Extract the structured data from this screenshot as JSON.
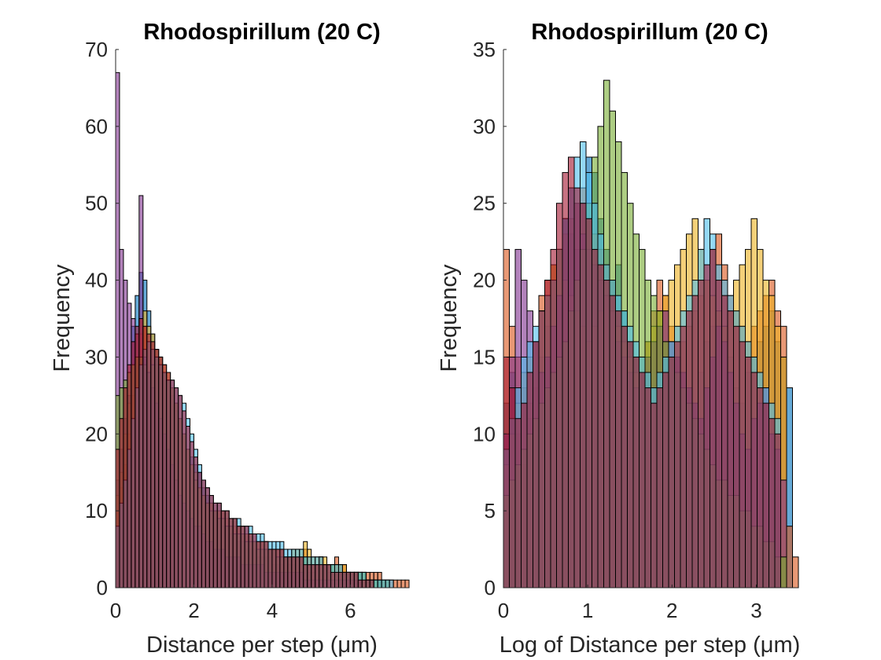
{
  "colors": [
    "#0072BD",
    "#D95319",
    "#EDB120",
    "#7E2F8E",
    "#77AC30",
    "#4DBEEE",
    "#A2142F"
  ],
  "chart_data": [
    {
      "type": "bar",
      "title": "Rhodospirillum (20 C)",
      "xlabel": "Distance per step (μm)",
      "ylabel": "Frequency",
      "xlim": [
        0,
        7.5
      ],
      "ylim": [
        0,
        70
      ],
      "xticks": [
        "0",
        "2",
        "4",
        "6"
      ],
      "yticks": [
        "0",
        "10",
        "20",
        "30",
        "40",
        "50",
        "60",
        "70"
      ],
      "bin_width": 0.1,
      "series": [
        {
          "start": 0.0,
          "counts": [
            14,
            18,
            22,
            25,
            34,
            38,
            41,
            40,
            36,
            33,
            31,
            30,
            28,
            27,
            25,
            23,
            22,
            20,
            18,
            17,
            16,
            15,
            13,
            12,
            11,
            10,
            9,
            8,
            8,
            7,
            7,
            6,
            6,
            5,
            5,
            5,
            4,
            4,
            4,
            4,
            3,
            3,
            3,
            4,
            3,
            3,
            2,
            3,
            3,
            2,
            2,
            3,
            4,
            3,
            2,
            2,
            3,
            3,
            2,
            2,
            2,
            2,
            2,
            1,
            1,
            1,
            1,
            1
          ]
        },
        {
          "start": 0.0,
          "counts": [
            10,
            13,
            16,
            20,
            25,
            30,
            33,
            34,
            32,
            31,
            29,
            28,
            28,
            27,
            26,
            24,
            22,
            20,
            18,
            16,
            14,
            13,
            12,
            11,
            11,
            10,
            10,
            10,
            9,
            8,
            8,
            8,
            7,
            7,
            6,
            6,
            6,
            6,
            5,
            5,
            5,
            5,
            5,
            4,
            4,
            4,
            4,
            4,
            5,
            4,
            3,
            3,
            4,
            3,
            3,
            3,
            4,
            3,
            3,
            2,
            2,
            2,
            2,
            2,
            2,
            2,
            2,
            2,
            1,
            1,
            1,
            1,
            1,
            1,
            1
          ]
        },
        {
          "start": 0.0,
          "counts": [
            12,
            15,
            20,
            24,
            29,
            33,
            35,
            36,
            34,
            33,
            31,
            30,
            29,
            28,
            26,
            24,
            22,
            20,
            18,
            16,
            15,
            13,
            12,
            11,
            11,
            10,
            10,
            10,
            10,
            9,
            9,
            8,
            8,
            7,
            7,
            6,
            6,
            6,
            6,
            5,
            5,
            5,
            5,
            4,
            4,
            5,
            5,
            5,
            6,
            5,
            4,
            4,
            4,
            4,
            3,
            3,
            3,
            3,
            3,
            2,
            2,
            2,
            2,
            2,
            1,
            1,
            1
          ]
        },
        {
          "start": 0.0,
          "counts": [
            67,
            44,
            40,
            37,
            35,
            33,
            51,
            30,
            28,
            26,
            24,
            22,
            20,
            18,
            16,
            14,
            12,
            11,
            10,
            9,
            8,
            8,
            7,
            6,
            6,
            5,
            5,
            5,
            4,
            4,
            4,
            4,
            3,
            3,
            3,
            3,
            3,
            3,
            2,
            2,
            2,
            2,
            2,
            2,
            2,
            2,
            2,
            2,
            1,
            1,
            1,
            1,
            1,
            1,
            1,
            1,
            1,
            1,
            1,
            1,
            1,
            1,
            1
          ]
        },
        {
          "start": 0.0,
          "counts": [
            25,
            26,
            27,
            28,
            29,
            30,
            30,
            29,
            28,
            29,
            30,
            29,
            28,
            27,
            26,
            24,
            22,
            20,
            18,
            16,
            14,
            13,
            12,
            11,
            10,
            10,
            9,
            9,
            8,
            8,
            7,
            7,
            7,
            6,
            6,
            6,
            5,
            5,
            5,
            5,
            5,
            4,
            4,
            4,
            4,
            4,
            4,
            4,
            4,
            3,
            3,
            3,
            3,
            3,
            3,
            3,
            2,
            2,
            2,
            2,
            2,
            2,
            2,
            2,
            1,
            1,
            1,
            1,
            1,
            1
          ]
        },
        {
          "start": 0.0,
          "counts": [
            8,
            11,
            14,
            18,
            22,
            26,
            29,
            31,
            32,
            31,
            30,
            29,
            28,
            27,
            27,
            26,
            25,
            24,
            22,
            20,
            18,
            16,
            14,
            13,
            12,
            11,
            11,
            10,
            10,
            9,
            9,
            9,
            8,
            8,
            8,
            7,
            7,
            7,
            6,
            6,
            6,
            6,
            6,
            5,
            5,
            5,
            5,
            5,
            4,
            4,
            4,
            4,
            4,
            3,
            3,
            3,
            3,
            3,
            2,
            2,
            2,
            2,
            2,
            2,
            1,
            1,
            1,
            1,
            1,
            1,
            1
          ]
        },
        {
          "start": 0.0,
          "counts": [
            18,
            22,
            26,
            29,
            32,
            34,
            35,
            34,
            33,
            32,
            31,
            30,
            29,
            28,
            27,
            26,
            25,
            23,
            21,
            19,
            17,
            15,
            14,
            13,
            12,
            11,
            11,
            10,
            10,
            9,
            9,
            8,
            8,
            8,
            7,
            7,
            6,
            6,
            6,
            5,
            5,
            5,
            5,
            4,
            4,
            4,
            4,
            4,
            3,
            3,
            3,
            3,
            3,
            3,
            3,
            2,
            2,
            2,
            2,
            2,
            2,
            2,
            1,
            1,
            1,
            1
          ]
        }
      ]
    },
    {
      "type": "bar",
      "title": "Rhodospirillum (20 C)",
      "xlabel": "Log of Distance per step (μm)",
      "ylabel": "Frequency",
      "xlim": [
        0,
        3.5
      ],
      "ylim": [
        0,
        35
      ],
      "xticks": [
        "0",
        "1",
        "2",
        "3"
      ],
      "yticks": [
        "0",
        "5",
        "10",
        "15",
        "20",
        "25",
        "30",
        "35"
      ],
      "bin_width": 0.07,
      "series": [
        {
          "start": 0.0,
          "counts": [
            12,
            14,
            10,
            8,
            11,
            13,
            15,
            17,
            20,
            22,
            24,
            23,
            22,
            25,
            28,
            27,
            24,
            22,
            20,
            21,
            18,
            16,
            15,
            14,
            13,
            16,
            17,
            18,
            16,
            15,
            14,
            13,
            12,
            14,
            16,
            17,
            18,
            17,
            15,
            13,
            12,
            14,
            15,
            16,
            17,
            18,
            16,
            15,
            13
          ]
        },
        {
          "start": 0.0,
          "counts": [
            22,
            17,
            15,
            13,
            12,
            16,
            19,
            20,
            21,
            22,
            23,
            24,
            25,
            26,
            24,
            23,
            22,
            21,
            20,
            18,
            17,
            16,
            15,
            14,
            16,
            18,
            20,
            19,
            17,
            15,
            16,
            17,
            18,
            19,
            20,
            22,
            23,
            21,
            19,
            18,
            17,
            16,
            17,
            18,
            19,
            20,
            18,
            17,
            4,
            2
          ]
        },
        {
          "start": 0.0,
          "counts": [
            8,
            10,
            12,
            14,
            15,
            16,
            18,
            19,
            21,
            22,
            20,
            19,
            18,
            17,
            16,
            17,
            18,
            19,
            18,
            17,
            16,
            15,
            14,
            15,
            16,
            17,
            18,
            19,
            20,
            21,
            22,
            23,
            24,
            22,
            20,
            19,
            18,
            17,
            18,
            20,
            21,
            22,
            24,
            22,
            20,
            19,
            17,
            15
          ]
        },
        {
          "start": 0.0,
          "counts": [
            10,
            15,
            22,
            20,
            18,
            16,
            14,
            15,
            17,
            19,
            24,
            26,
            25,
            23,
            22,
            21,
            20,
            19,
            18,
            16,
            15,
            14,
            13,
            14,
            15,
            16,
            17,
            18,
            16,
            15,
            14,
            13,
            12,
            11,
            13,
            15,
            17,
            16,
            14,
            12,
            10,
            9,
            11,
            12,
            13,
            10,
            9,
            7
          ]
        },
        {
          "start": 0.0,
          "counts": [
            6,
            7,
            8,
            9,
            10,
            11,
            12,
            13,
            14,
            15,
            16,
            18,
            20,
            22,
            25,
            28,
            30,
            33,
            31,
            29,
            27,
            25,
            23,
            22,
            20,
            19,
            18,
            16,
            15,
            14,
            13,
            12,
            11,
            10,
            9,
            8,
            7,
            7,
            6,
            6,
            5,
            5,
            4,
            4,
            3,
            3,
            2,
            2
          ]
        },
        {
          "start": 0.0,
          "counts": [
            9,
            11,
            13,
            15,
            16,
            17,
            18,
            19,
            20,
            22,
            24,
            26,
            28,
            29,
            27,
            25,
            23,
            21,
            20,
            19,
            18,
            17,
            16,
            15,
            14,
            13,
            14,
            15,
            16,
            17,
            18,
            19,
            20,
            22,
            24,
            23,
            21,
            20,
            19,
            18,
            17,
            16,
            15,
            14,
            13,
            12,
            11
          ]
        },
        {
          "start": 0.0,
          "counts": [
            15,
            13,
            11,
            12,
            14,
            16,
            18,
            20,
            22,
            25,
            27,
            28,
            26,
            25,
            24,
            22,
            21,
            20,
            19,
            18,
            17,
            16,
            15,
            14,
            13,
            12,
            13,
            14,
            15,
            16,
            17,
            18,
            19,
            20,
            21,
            22,
            20,
            19,
            18,
            17,
            16,
            15,
            14,
            13,
            12,
            11,
            10
          ]
        }
      ]
    }
  ]
}
